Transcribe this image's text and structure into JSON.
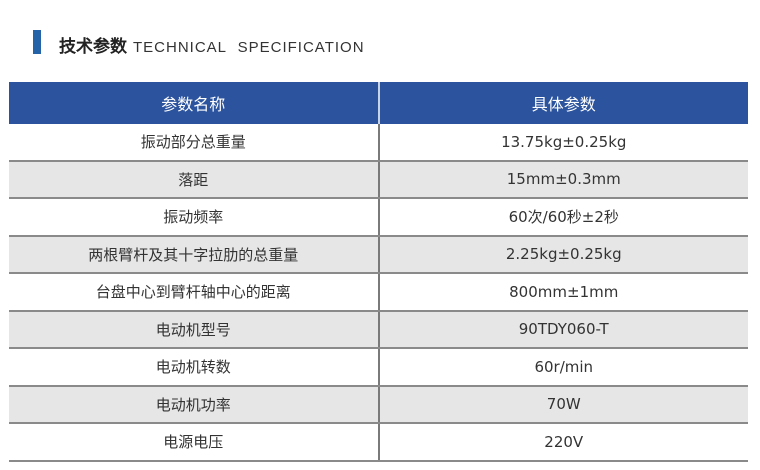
{
  "header": {
    "title_cn": "技术参数",
    "title_en": "TECHNICAL  SPECIFICATION",
    "accent": "#2463a8"
  },
  "table": {
    "columns": [
      "参数名称",
      "具体参数"
    ],
    "header_color": "#2c539e",
    "rows": [
      [
        "振动部分总重量",
        "13.75kg±0.25kg"
      ],
      [
        "落距",
        "15mm±0.3mm"
      ],
      [
        "振动频率",
        "60次/60秒±2秒"
      ],
      [
        "两根臂杆及其十字拉肋的总重量",
        "2.25kg±0.25kg"
      ],
      [
        "台盘中心到臂杆轴中心的距离",
        "800mm±1mm"
      ],
      [
        "电动机型号",
        "90TDY060-T"
      ],
      [
        "电动机转数",
        "60r/min"
      ],
      [
        "电动机功率",
        "70W"
      ],
      [
        "电源电压",
        "220V"
      ]
    ]
  }
}
